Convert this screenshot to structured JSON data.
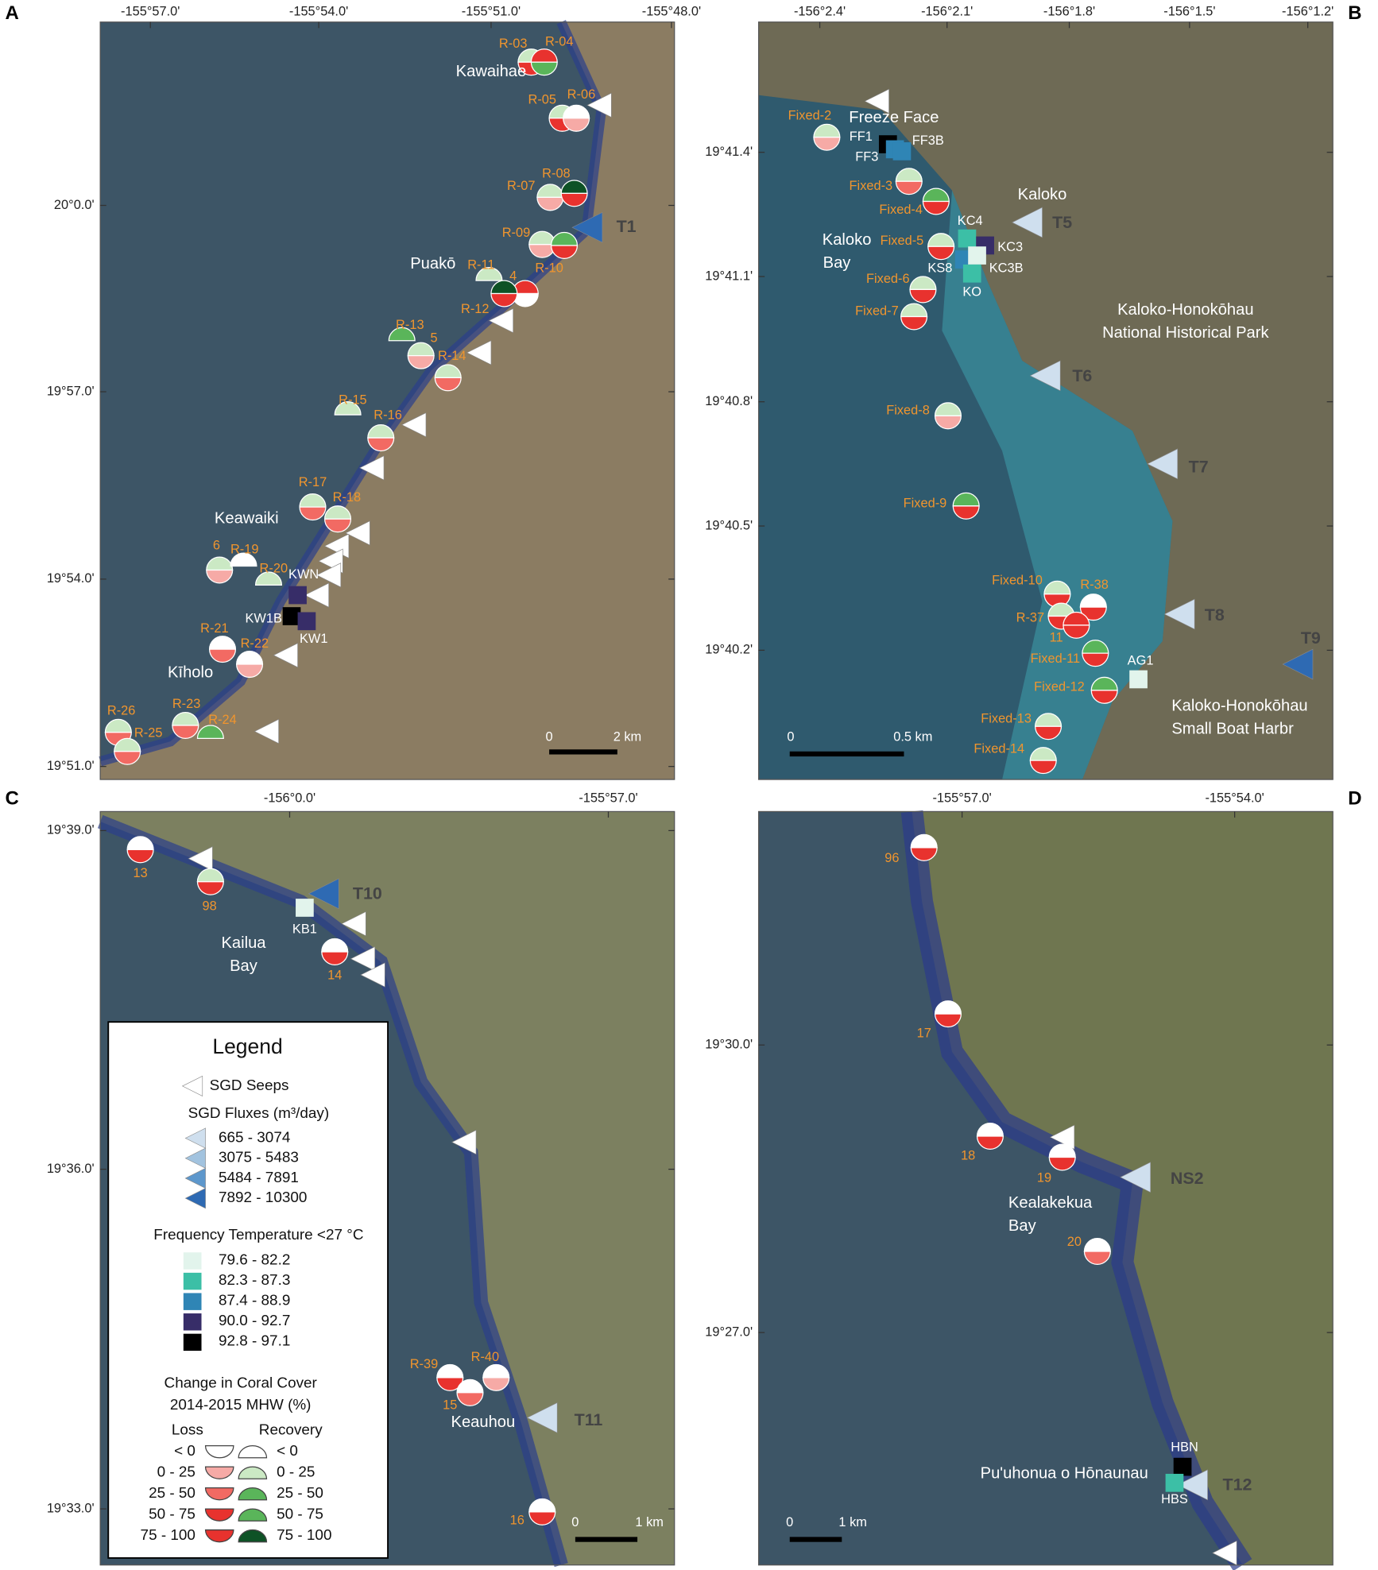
{
  "panels": [
    {
      "label": "A",
      "xticks": [
        "-155°57.0'",
        "-155°54.0'",
        "-155°51.0'",
        "-155°48.0'"
      ],
      "yticks": [
        "20°0.0'",
        "19°57.0'",
        "19°54.0'",
        "19°51.0'"
      ],
      "places": [
        "Kawaihae",
        "Puakō",
        "Keawaiki",
        "Kīholo"
      ],
      "sites": [
        "R-03",
        "R-04",
        "R-05",
        "R-06",
        "R-07",
        "R-08",
        "R-09",
        "R-10",
        "R-11",
        "4",
        "R-12",
        "R-13",
        "5",
        "R-14",
        "R-15",
        "R-16",
        "R-17",
        "R-18",
        "6",
        "R-19",
        "R-20",
        "R-21",
        "R-22",
        "R-23",
        "R-24",
        "R-26",
        "R-25"
      ],
      "transects": [
        "T1"
      ],
      "stations": [
        "KWN",
        "KW1B",
        "KW1"
      ],
      "scale": [
        "0",
        "2 km"
      ]
    },
    {
      "label": "B",
      "xticks": [
        "-156°2.4'",
        "-156°2.1'",
        "-156°1.8'",
        "-156°1.5'",
        "-156°1.2'"
      ],
      "yticks": [
        "19°41.4'",
        "19°41.1'",
        "19°40.8'",
        "19°40.5'",
        "19°40.2'"
      ],
      "places": [
        "Freeze Face",
        "Kaloko",
        "Kaloko",
        "Bay",
        "Kaloko-Honokōhau",
        "National Historical Park",
        "Kaloko-Honokōhau",
        "Small Boat Harbr"
      ],
      "sites": [
        "Fixed-2",
        "Fixed-3",
        "Fixed-4",
        "Fixed-5",
        "Fixed-6",
        "Fixed-7",
        "Fixed-8",
        "Fixed-9",
        "Fixed-10",
        "R-38",
        "R-37",
        "11",
        "Fixed-11",
        "Fixed-12",
        "Fixed-13",
        "Fixed-14"
      ],
      "transects": [
        "T5",
        "T6",
        "T7",
        "T8",
        "T9"
      ],
      "stations": [
        "FF1",
        "FF3",
        "FF3B",
        "KC4",
        "KC3",
        "KS8",
        "KC3B",
        "KO",
        "AG1"
      ],
      "scale": [
        "0",
        "0.5 km"
      ]
    },
    {
      "label": "C",
      "xticks": [
        "-156°0.0'",
        "-155°57.0'"
      ],
      "yticks": [
        "19°39.0'",
        "19°36.0'",
        "19°33.0'"
      ],
      "places": [
        "Kailua",
        "Bay",
        "Keauhou"
      ],
      "sites": [
        "13",
        "98",
        "14",
        "R-39",
        "15",
        "R-40",
        "16"
      ],
      "transects": [
        "T10",
        "T11"
      ],
      "stations": [
        "KB1"
      ],
      "scale": [
        "0",
        "1 km"
      ]
    },
    {
      "label": "D",
      "xticks": [
        "-155°57.0'",
        "-155°54.0'"
      ],
      "yticks": [
        "19°30.0'",
        "19°27.0'"
      ],
      "places": [
        "Kealakekua",
        "Bay",
        "Pu'uhonua o Hōnaunau"
      ],
      "sites": [
        "96",
        "17",
        "18",
        "19",
        "20"
      ],
      "transects": [
        "NS2",
        "T12"
      ],
      "stations": [
        "HBN",
        "HBS"
      ],
      "scale": [
        "0",
        "1 km"
      ]
    }
  ],
  "legend": {
    "title": "Legend",
    "seeps": "SGD Seeps",
    "flux_title": "SGD Fluxes (m³/day)",
    "flux": [
      "665 - 3074",
      "3075 - 5483",
      "5484 - 7891",
      "7892 - 10300"
    ],
    "temp_title": "Frequency Temperature <27 °C",
    "temp": [
      "79.6 - 82.2",
      "82.3 - 87.3",
      "87.4 - 88.9",
      "90.0 - 92.7",
      "92.8 - 97.1"
    ],
    "coral_title": [
      "Change in Coral Cover",
      "2014-2015 MHW (%)"
    ],
    "loss": "Loss",
    "recovery": "Recovery",
    "classes": [
      "< 0",
      "0 - 25",
      "25 - 50",
      "50 - 75",
      "75 - 100"
    ]
  }
}
